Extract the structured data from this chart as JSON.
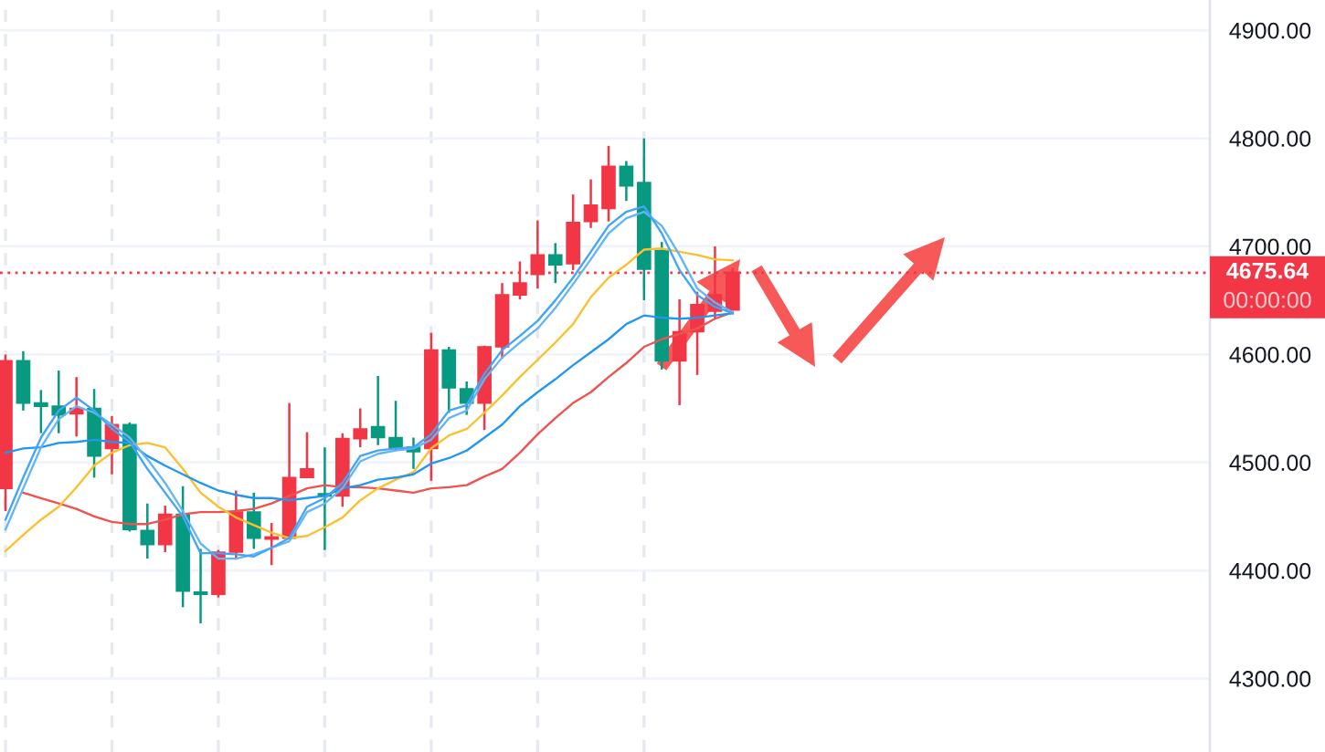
{
  "chart_data": {
    "type": "candlestick",
    "categories": [
      null,
      null,
      null,
      null,
      null,
      null,
      null,
      null,
      null,
      null,
      null,
      null,
      null,
      null,
      null,
      null,
      null,
      null,
      null,
      null,
      null,
      null,
      null,
      null,
      null,
      null,
      null,
      null,
      null,
      null,
      null,
      null,
      null,
      null,
      null,
      null,
      null,
      null,
      null,
      null,
      null,
      null
    ],
    "ohlc": [
      [
        4476,
        4600,
        4455,
        4594
      ],
      [
        4594,
        4603,
        4548,
        4555
      ],
      [
        4555,
        4567,
        4527,
        4552
      ],
      [
        4552,
        4585,
        4527,
        4544
      ],
      [
        4545,
        4579,
        4524,
        4550
      ],
      [
        4550,
        4568,
        4486,
        4506
      ],
      [
        4513,
        4543,
        4489,
        4535
      ],
      [
        4535,
        4537,
        4436,
        4438
      ],
      [
        4437,
        4462,
        4411,
        4424
      ],
      [
        4424,
        4460,
        4417,
        4452
      ],
      [
        4452,
        4478,
        4366,
        4381
      ],
      [
        4380,
        4420,
        4351,
        4378
      ],
      [
        4378,
        4419,
        4375,
        4417
      ],
      [
        4417,
        4474,
        4410,
        4454
      ],
      [
        4454,
        4472,
        4420,
        4430
      ],
      [
        4429,
        4444,
        4405,
        4431
      ],
      [
        4430,
        4555,
        4430,
        4486
      ],
      [
        4486,
        4528,
        4486,
        4494
      ],
      [
        4471,
        4514,
        4419,
        4469
      ],
      [
        4469,
        4527,
        4459,
        4522
      ],
      [
        4522,
        4550,
        4514,
        4531
      ],
      [
        4533,
        4580,
        4516,
        4523
      ],
      [
        4523,
        4557,
        4511,
        4514
      ],
      [
        4514,
        4523,
        4494,
        4510
      ],
      [
        4513,
        4620,
        4483,
        4604
      ],
      [
        4604,
        4607,
        4546,
        4569
      ],
      [
        4568,
        4575,
        4544,
        4555
      ],
      [
        4555,
        4608,
        4530,
        4607
      ],
      [
        4607,
        4666,
        4596,
        4655
      ],
      [
        4655,
        4686,
        4651,
        4666
      ],
      [
        4674,
        4724,
        4661,
        4692
      ],
      [
        4692,
        4703,
        4666,
        4683
      ],
      [
        4684,
        4748,
        4678,
        4722
      ],
      [
        4723,
        4762,
        4717,
        4738
      ],
      [
        4735,
        4793,
        4723,
        4774
      ],
      [
        4774,
        4779,
        4742,
        4756
      ],
      [
        4759,
        4800,
        4650,
        4679
      ],
      [
        4696,
        4704,
        4586,
        4594
      ],
      [
        4594,
        4651,
        4553,
        4621
      ],
      [
        4621,
        4658,
        4581,
        4646
      ],
      [
        4640,
        4700,
        4633,
        4655
      ],
      [
        4641,
        4680,
        4641,
        4676
      ]
    ],
    "colors": [
      "#f23645",
      "#089981",
      "#089981",
      "#089981",
      "#f23645",
      "#089981",
      "#f23645",
      "#089981",
      "#089981",
      "#f23645",
      "#089981",
      "#089981",
      "#f23645",
      "#f23645",
      "#089981",
      "#f23645",
      "#f23645",
      "#f23645",
      "#089981",
      "#f23645",
      "#f23645",
      "#089981",
      "#089981",
      "#089981",
      "#f23645",
      "#089981",
      "#089981",
      "#f23645",
      "#f23645",
      "#f23645",
      "#f23645",
      "#089981",
      "#f23645",
      "#f23645",
      "#f23645",
      "#089981",
      "#089981",
      "#089981",
      "#f23645",
      "#f23645",
      "#f23645",
      "#f23645"
    ],
    "series": [
      {
        "type": "line",
        "color": "#ef5350",
        "values": [
          null,
          4472,
          4467,
          4462,
          4457,
          4450,
          4445,
          4443,
          4443,
          4447,
          4452,
          4454,
          4454,
          4455,
          4457,
          4462,
          4469,
          4476,
          4479,
          4477,
          4477,
          4476,
          4474,
          4472,
          4476,
          4477,
          4479,
          4487,
          4494,
          4509,
          4526,
          4541,
          4555,
          4565,
          4579,
          4592,
          4607,
          4614,
          4619,
          4624,
          4633,
          4639
        ]
      },
      {
        "type": "line",
        "color": "#fbc02d",
        "values": [
          4418,
          4433,
          4447,
          4459,
          4477,
          4497,
          4509,
          4516,
          4518,
          4514,
          4494,
          4472,
          4459,
          4449,
          4442,
          4435,
          4430,
          4432,
          4440,
          4449,
          4465,
          4476,
          4484,
          4491,
          4513,
          4525,
          4531,
          4546,
          4562,
          4579,
          4595,
          4611,
          4628,
          4653,
          4671,
          4683,
          4697,
          4698,
          4695,
          4692,
          4688,
          4687
        ]
      },
      {
        "type": "line",
        "color": "#2196f3",
        "values": [
          4509,
          4513,
          4514,
          4518,
          4519,
          4521,
          4519,
          4518,
          4506,
          4497,
          4489,
          4481,
          4474,
          4470,
          4467,
          4467,
          4465,
          4467,
          4469,
          4476,
          4479,
          4484,
          4486,
          4489,
          4499,
          4504,
          4511,
          4523,
          4535,
          4552,
          4565,
          4577,
          4590,
          4602,
          4614,
          4628,
          4636,
          4634,
          4633,
          4634,
          4636,
          4638
        ]
      },
      {
        "type": "line",
        "color": "#64b5f6",
        "values": [
          4438,
          4476,
          4514,
          4540,
          4552,
          4546,
          4535,
          4523,
          4503,
          4481,
          4455,
          4425,
          4411,
          4411,
          4415,
          4421,
          4427,
          4454,
          4462,
          4476,
          4501,
          4508,
          4511,
          4513,
          4521,
          4541,
          4548,
          4577,
          4597,
          4611,
          4624,
          4643,
          4665,
          4688,
          4712,
          4726,
          4732,
          4719,
          4692,
          4661,
          4648,
          4639
        ]
      },
      {
        "type": "line",
        "color": "#42a5f5",
        "values": [
          4447,
          4486,
          4523,
          4548,
          4560,
          4548,
          4531,
          4519,
          4494,
          4472,
          4450,
          4416,
          4416,
          4415,
          4413,
          4421,
          4430,
          4459,
          4467,
          4481,
          4506,
          4511,
          4513,
          4514,
          4526,
          4548,
          4553,
          4582,
          4604,
          4617,
          4631,
          4650,
          4671,
          4695,
          4719,
          4732,
          4737,
          4712,
          4678,
          4655,
          4644,
          4638
        ]
      }
    ],
    "ylim": [
      4232,
      4928
    ],
    "yticks": [
      {
        "value": 4300,
        "label": "4300.00"
      },
      {
        "value": 4400,
        "label": "4400.00"
      },
      {
        "value": 4500,
        "label": "4500.00"
      },
      {
        "value": 4600,
        "label": "4600.00"
      },
      {
        "value": 4700,
        "label": "4700.00"
      },
      {
        "value": 4800,
        "label": "4800.00"
      },
      {
        "value": 4900,
        "label": "4900.00"
      }
    ],
    "ref_lines": [
      {
        "axis": "y",
        "value": 4675.64,
        "label": "4675.64",
        "color": "#f23645",
        "line_style": "dotted"
      }
    ],
    "annotations": [
      "00:00:00"
    ],
    "grid": true,
    "tick_labels": "y",
    "line_style": "solid"
  }
}
